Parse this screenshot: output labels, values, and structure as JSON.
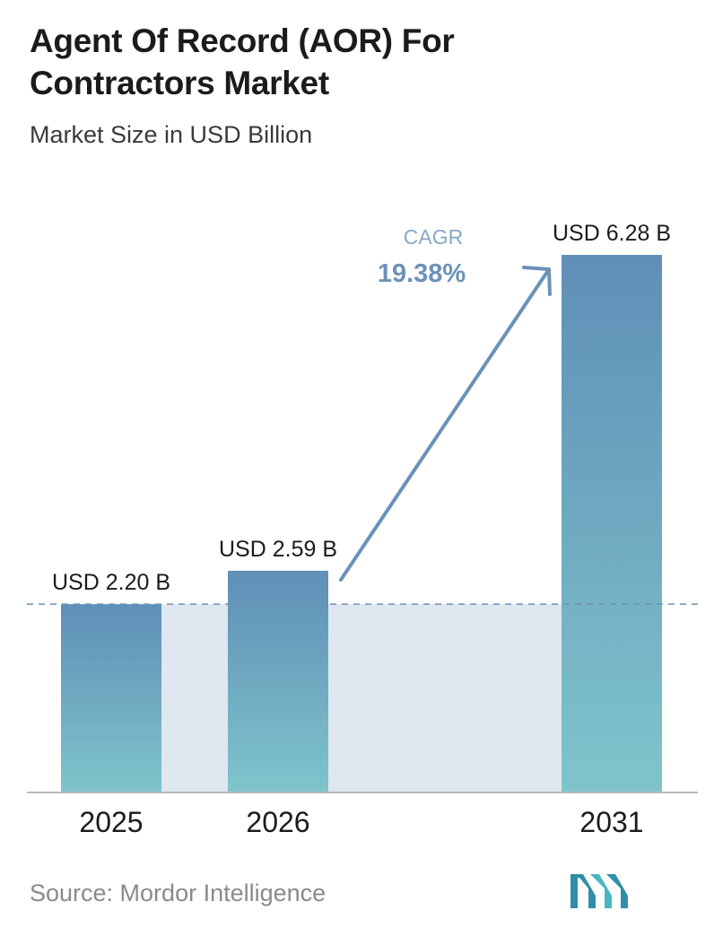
{
  "header": {
    "title_line1": "Agent Of Record (AOR) For",
    "title_line2": "Contractors Market",
    "subtitle": "Market Size in USD Billion"
  },
  "chart_data": {
    "type": "bar",
    "categories": [
      "2025",
      "2026",
      "2031"
    ],
    "values": [
      2.2,
      2.59,
      6.28
    ],
    "value_labels": [
      "USD 2.20 B",
      "USD 2.59 B",
      "USD 6.28 B"
    ],
    "title": "Agent Of Record (AOR) For Contractors Market",
    "subtitle": "Market Size in USD Billion",
    "ylim": [
      0,
      6.28
    ],
    "grid": false,
    "cagr_label": "CAGR",
    "cagr_value": "19.38%"
  },
  "footer": {
    "source": "Source: Mordor Intelligence"
  },
  "colors": {
    "bar_top": "#5f8fb7",
    "bar_bottom": "#7fc4cb",
    "band": "#dfe7f0",
    "arrow": "#6b92b7",
    "cagr_label": "#86a9c6",
    "axis": "#b9b9b9"
  },
  "icons": {
    "logo": "mordor-intelligence-logo"
  }
}
